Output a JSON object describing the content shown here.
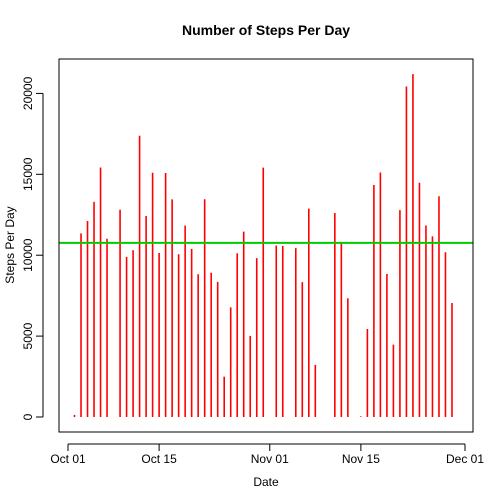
{
  "chart_data": {
    "type": "bar",
    "title": "Number of Steps Per Day",
    "xlabel": "Date",
    "ylabel": "Steps Per Day",
    "x_ticks": [
      {
        "date": "2012-10-01",
        "label": "Oct 01"
      },
      {
        "date": "2012-10-15",
        "label": "Oct 15"
      },
      {
        "date": "2012-11-01",
        "label": "Nov 01"
      },
      {
        "date": "2012-11-15",
        "label": "Nov 15"
      },
      {
        "date": "2012-12-01",
        "label": "Dec 01"
      }
    ],
    "y_ticks": [
      0,
      5000,
      10000,
      15000,
      20000
    ],
    "xlim": [
      "2012-10-01",
      "2012-12-01"
    ],
    "ylim": [
      0,
      21200
    ],
    "bar_color": "#ff0000",
    "reference_line": {
      "value": 10766,
      "color": "#00cc00"
    },
    "series": [
      {
        "x": [
          "2012-10-02",
          "2012-10-03",
          "2012-10-04",
          "2012-10-05",
          "2012-10-06",
          "2012-10-07",
          "2012-10-09",
          "2012-10-10",
          "2012-10-11",
          "2012-10-12",
          "2012-10-13",
          "2012-10-14",
          "2012-10-15",
          "2012-10-16",
          "2012-10-17",
          "2012-10-18",
          "2012-10-19",
          "2012-10-20",
          "2012-10-21",
          "2012-10-22",
          "2012-10-23",
          "2012-10-24",
          "2012-10-25",
          "2012-10-26",
          "2012-10-27",
          "2012-10-28",
          "2012-10-29",
          "2012-10-30",
          "2012-10-31",
          "2012-11-02",
          "2012-11-03",
          "2012-11-05",
          "2012-11-06",
          "2012-11-07",
          "2012-11-08",
          "2012-11-11",
          "2012-11-12",
          "2012-11-13",
          "2012-11-15",
          "2012-11-16",
          "2012-11-17",
          "2012-11-18",
          "2012-11-19",
          "2012-11-20",
          "2012-11-21",
          "2012-11-22",
          "2012-11-23",
          "2012-11-24",
          "2012-11-25",
          "2012-11-26",
          "2012-11-27",
          "2012-11-28",
          "2012-11-29"
        ],
        "values": [
          126,
          11352,
          12116,
          13294,
          15420,
          11015,
          12811,
          9900,
          10304,
          17382,
          12426,
          15098,
          10139,
          15084,
          13452,
          10056,
          11829,
          10395,
          8821,
          13460,
          8918,
          8355,
          2492,
          6778,
          10119,
          11458,
          5018,
          9819,
          15414,
          10600,
          10571,
          10439,
          8334,
          12883,
          3219,
          12608,
          10765,
          7336,
          41,
          5441,
          14339,
          15110,
          8841,
          4472,
          12787,
          20427,
          21194,
          14478,
          11834,
          11162,
          13646,
          10183,
          7047
        ]
      }
    ]
  }
}
